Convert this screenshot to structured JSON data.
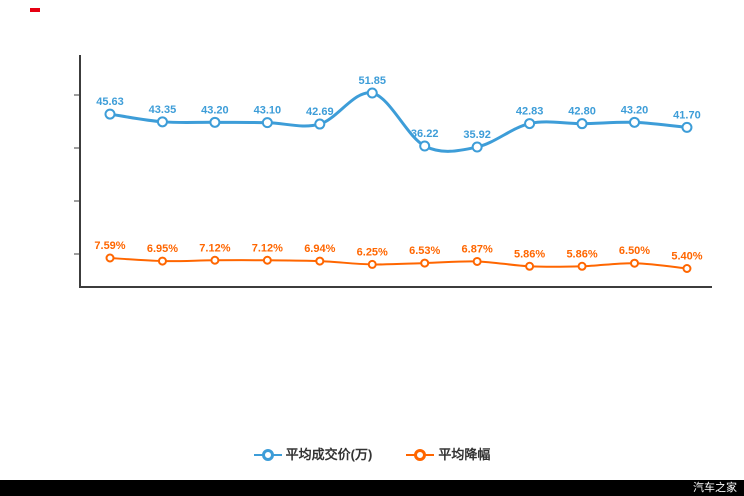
{
  "chart_data": {
    "type": "line",
    "title": "",
    "xlabel": "",
    "ylabel": "",
    "x_tick_labels": [],
    "grid": false,
    "legend_position": "bottom",
    "point_count": 12,
    "series": [
      {
        "name": "平均成交价(万)",
        "color": "#3d9dd8",
        "axis": "left",
        "values": [
          45.63,
          43.35,
          43.2,
          43.1,
          42.69,
          51.85,
          36.22,
          35.92,
          42.83,
          42.8,
          43.2,
          41.7
        ],
        "labels": [
          "45.63",
          "43.35",
          "43.20",
          "43.10",
          "42.69",
          "51.85",
          "36.22",
          "35.92",
          "42.83",
          "42.80",
          "43.20",
          "41.70"
        ]
      },
      {
        "name": "平均降幅",
        "color": "#ff6600",
        "axis": "right",
        "values": [
          7.59,
          6.95,
          7.12,
          7.12,
          6.94,
          6.25,
          6.53,
          6.87,
          5.86,
          5.86,
          6.5,
          5.4
        ],
        "labels": [
          "7.59%",
          "6.95%",
          "7.12%",
          "7.12%",
          "6.94%",
          "6.25%",
          "6.53%",
          "6.87%",
          "5.86%",
          "5.86%",
          "6.50%",
          "5.40%"
        ]
      }
    ]
  },
  "legend": {
    "items": [
      {
        "label": "平均成交价(万)",
        "color": "#3d9dd8"
      },
      {
        "label": "平均降幅",
        "color": "#ff6600"
      }
    ]
  },
  "watermark": {
    "text": "汽车之家"
  },
  "colors": {
    "axis": "#3c3c3c",
    "blue": "#3d9dd8",
    "orange": "#ff6600",
    "footer_bg": "#000000",
    "footer_text": "#ffffff",
    "label_dark": "#333333"
  }
}
